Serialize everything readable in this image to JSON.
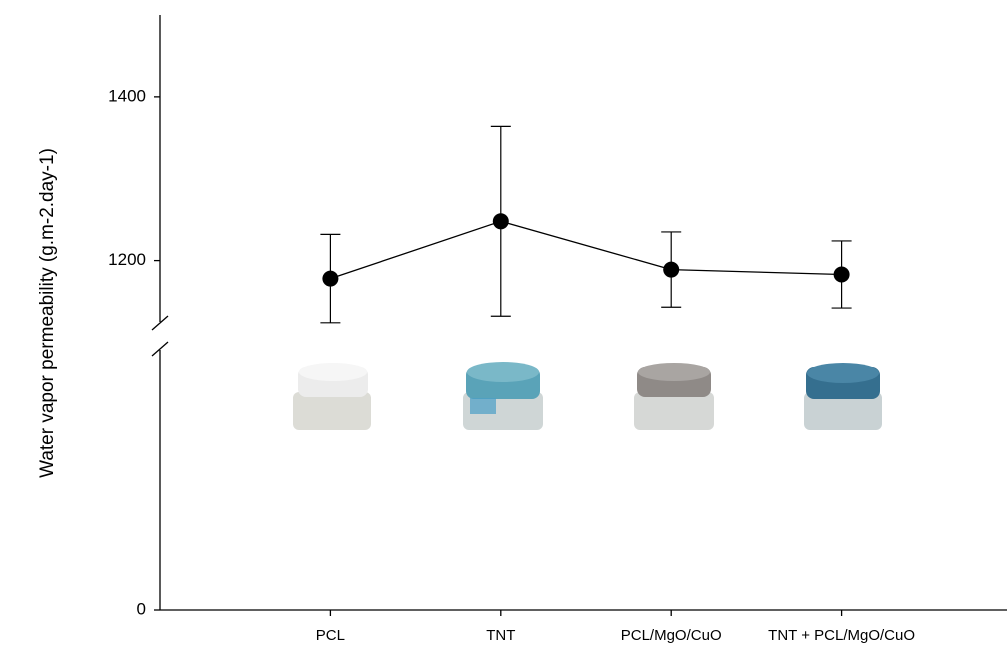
{
  "chart_data": {
    "type": "line",
    "ylabel": "Water vapor permeability (g.m-2.day-1)",
    "categories": [
      "PCL",
      "TNT",
      "PCL/MgO/CuO",
      "TNT + PCL/MgO/CuO"
    ],
    "values": [
      1178,
      1248,
      1189,
      1183
    ],
    "errors": [
      54,
      116,
      46,
      41
    ],
    "color": "#000000",
    "ylim": [
      1125,
      1500
    ],
    "yticks": [
      0,
      1200,
      1400
    ],
    "axis_break": true
  }
}
